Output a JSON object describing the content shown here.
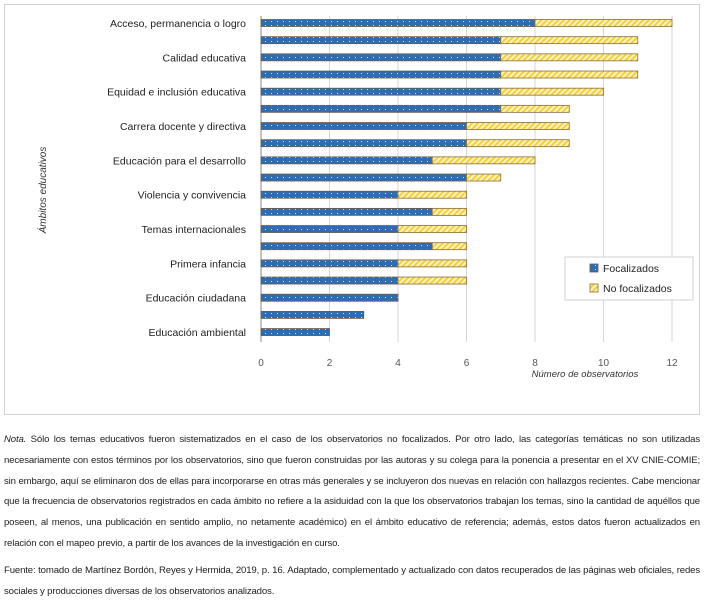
{
  "chart_data": {
    "type": "bar",
    "orientation": "horizontal",
    "stacked": true,
    "categories": [
      "Acceso, permanencia o logro",
      "",
      "Calidad educativa",
      "",
      "Equidad e inclusión educativa",
      "",
      "Carrera docente y directiva",
      "",
      "Educación para el desarrollo",
      "",
      "Violencia y convivencia",
      "",
      "Temas internacionales",
      "",
      "Primera infancia",
      "",
      "Educación ciudadana",
      "",
      "Educación ambiental"
    ],
    "series": [
      {
        "name": "Focalizados",
        "color": "#2e6db4",
        "values": [
          8,
          7,
          7,
          7,
          7,
          7,
          6,
          6,
          5,
          6,
          4,
          5,
          4,
          5,
          4,
          4,
          4,
          3,
          2
        ]
      },
      {
        "name": "No focalizados",
        "color": "#f5d547",
        "values": [
          4,
          4,
          4,
          4,
          3,
          2,
          3,
          3,
          3,
          1,
          2,
          1,
          2,
          1,
          2,
          2,
          0,
          0,
          0
        ]
      }
    ],
    "xlabel": "Número de observatorios",
    "ylabel": "Ámbitos educativos",
    "xlim": [
      0,
      12
    ],
    "xticks": [
      "0",
      "2",
      "4",
      "6",
      "8",
      "10",
      "12"
    ],
    "grid": true,
    "legend": "bottom-right"
  },
  "note": {
    "label": "Nota.",
    "text": "Sólo los temas educativos fueron sistematizados en el caso de los observatorios no focalizados. Por otro lado, las categorías temáticas no son utilizadas necesariamente con estos términos por los observatorios, sino que fueron construidas por las autoras y su colega para la ponencia a presentar en el XV CNIE-COMIE; sin embargo, aquí se eliminaron dos de ellas para incorporarse en otras más generales y se incluyeron dos nuevas en relación con hallazgos recientes. Cabe mencionar que la frecuencia de observatorios registrados en cada ámbito no refiere a la asiduidad con la que los observatorios trabajan los temas, sino la cantidad de aquéllos que poseen, al menos, una publicación en sentido amplio, no netamente académico) en el ámbito educativo de referencia; además, estos datos fueron actualizados en relación con el mapeo previo, a partir de los avances de la investigación en curso."
  },
  "source": "Fuente: tomado de Martínez Bordón, Reyes y Hermida, 2019, p. 16. Adaptado, complementado y actualizado con datos recuperados de las páginas web oficiales, redes sociales y producciones diversas de los observatorios analizados."
}
